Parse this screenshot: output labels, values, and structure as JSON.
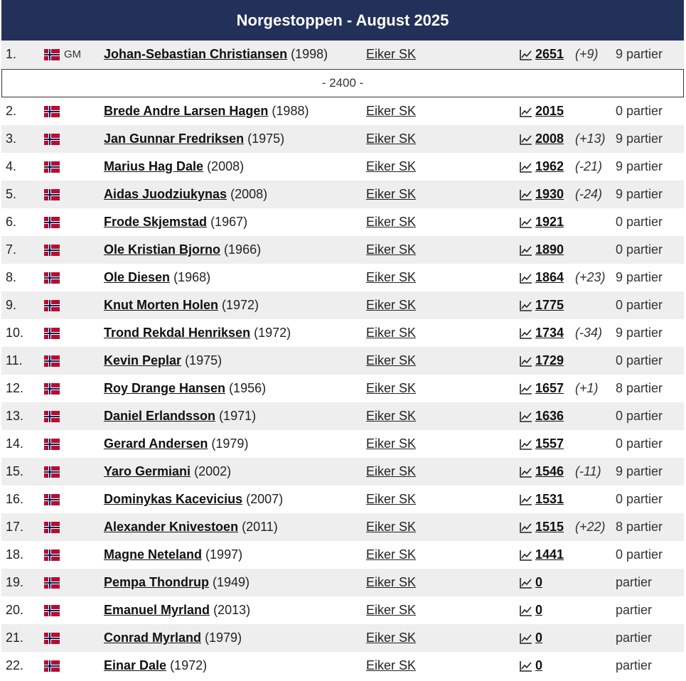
{
  "title": "Norgestoppen - August 2025",
  "divider_label": "- 2400 -",
  "rows": [
    {
      "rank": "1.",
      "badge": "GM",
      "name": "Johan-Sebastian Christiansen",
      "year": "(1998)",
      "club": "Eiker SK",
      "rating": "2651",
      "change": "(+9)",
      "games": "9 partier"
    },
    {
      "rank": "2.",
      "badge": "",
      "name": "Brede Andre Larsen Hagen",
      "year": "(1988)",
      "club": "Eiker SK",
      "rating": "2015",
      "change": "",
      "games": "0 partier"
    },
    {
      "rank": "3.",
      "badge": "",
      "name": "Jan Gunnar Fredriksen",
      "year": "(1975)",
      "club": "Eiker SK",
      "rating": "2008",
      "change": "(+13)",
      "games": "9 partier"
    },
    {
      "rank": "4.",
      "badge": "",
      "name": "Marius Hag Dale",
      "year": "(2008)",
      "club": "Eiker SK",
      "rating": "1962",
      "change": "(-21)",
      "games": "9 partier"
    },
    {
      "rank": "5.",
      "badge": "",
      "name": "Aidas Juodziukynas",
      "year": "(2008)",
      "club": "Eiker SK",
      "rating": "1930",
      "change": "(-24)",
      "games": "9 partier"
    },
    {
      "rank": "6.",
      "badge": "",
      "name": "Frode Skjemstad",
      "year": "(1967)",
      "club": "Eiker SK",
      "rating": "1921",
      "change": "",
      "games": "0 partier"
    },
    {
      "rank": "7.",
      "badge": "",
      "name": "Ole Kristian Bjorno",
      "year": "(1966)",
      "club": "Eiker SK",
      "rating": "1890",
      "change": "",
      "games": "0 partier"
    },
    {
      "rank": "8.",
      "badge": "",
      "name": "Ole Diesen",
      "year": "(1968)",
      "club": "Eiker SK",
      "rating": "1864",
      "change": "(+23)",
      "games": "9 partier"
    },
    {
      "rank": "9.",
      "badge": "",
      "name": "Knut Morten Holen",
      "year": "(1972)",
      "club": "Eiker SK",
      "rating": "1775",
      "change": "",
      "games": "0 partier"
    },
    {
      "rank": "10.",
      "badge": "",
      "name": "Trond Rekdal Henriksen",
      "year": "(1972)",
      "club": "Eiker SK",
      "rating": "1734",
      "change": "(-34)",
      "games": "9 partier"
    },
    {
      "rank": "11.",
      "badge": "",
      "name": "Kevin Peplar",
      "year": "(1975)",
      "club": "Eiker SK",
      "rating": "1729",
      "change": "",
      "games": "0 partier"
    },
    {
      "rank": "12.",
      "badge": "",
      "name": "Roy Drange Hansen",
      "year": "(1956)",
      "club": "Eiker SK",
      "rating": "1657",
      "change": "(+1)",
      "games": "8 partier"
    },
    {
      "rank": "13.",
      "badge": "",
      "name": "Daniel Erlandsson",
      "year": "(1971)",
      "club": "Eiker SK",
      "rating": "1636",
      "change": "",
      "games": "0 partier"
    },
    {
      "rank": "14.",
      "badge": "",
      "name": "Gerard Andersen",
      "year": "(1979)",
      "club": "Eiker SK",
      "rating": "1557",
      "change": "",
      "games": "0 partier"
    },
    {
      "rank": "15.",
      "badge": "",
      "name": "Yaro Germiani",
      "year": "(2002)",
      "club": "Eiker SK",
      "rating": "1546",
      "change": "(-11)",
      "games": "9 partier"
    },
    {
      "rank": "16.",
      "badge": "",
      "name": "Dominykas Kacevicius",
      "year": "(2007)",
      "club": "Eiker SK",
      "rating": "1531",
      "change": "",
      "games": "0 partier"
    },
    {
      "rank": "17.",
      "badge": "",
      "name": "Alexander Knivestoen",
      "year": "(2011)",
      "club": "Eiker SK",
      "rating": "1515",
      "change": "(+22)",
      "games": "8 partier"
    },
    {
      "rank": "18.",
      "badge": "",
      "name": "Magne Neteland",
      "year": "(1997)",
      "club": "Eiker SK",
      "rating": "1441",
      "change": "",
      "games": "0 partier"
    },
    {
      "rank": "19.",
      "badge": "",
      "name": "Pempa Thondrup",
      "year": "(1949)",
      "club": "Eiker SK",
      "rating": "0",
      "change": "",
      "games": "partier"
    },
    {
      "rank": "20.",
      "badge": "",
      "name": "Emanuel Myrland",
      "year": "(2013)",
      "club": "Eiker SK",
      "rating": "0",
      "change": "",
      "games": "partier"
    },
    {
      "rank": "21.",
      "badge": "",
      "name": "Conrad Myrland",
      "year": "(1979)",
      "club": "Eiker SK",
      "rating": "0",
      "change": "",
      "games": "partier"
    },
    {
      "rank": "22.",
      "badge": "",
      "name": "Einar Dale",
      "year": "(1972)",
      "club": "Eiker SK",
      "rating": "0",
      "change": "",
      "games": "partier"
    }
  ],
  "icons": {
    "flag": "norway-flag-icon",
    "trend": "trend-chart-icon"
  },
  "colors": {
    "header_bg": "#22305a",
    "row_alt": "#eeeeee"
  }
}
